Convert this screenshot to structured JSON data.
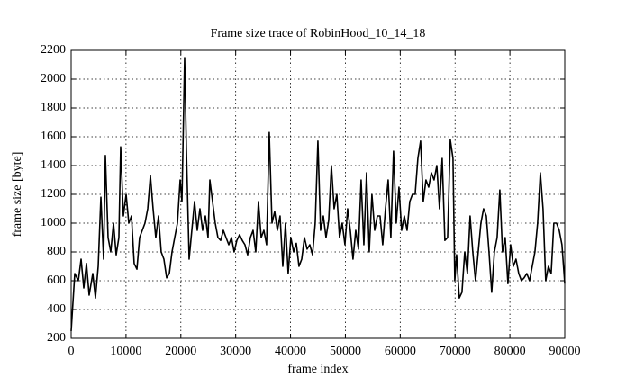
{
  "chart_data": {
    "type": "line",
    "title": "Frame size trace of RobinHood_10_14_18",
    "x_label": "frame index",
    "y_label": "frame size [byte]",
    "xlim": [
      0,
      90000
    ],
    "xticks": [
      0,
      10000,
      20000,
      30000,
      40000,
      50000,
      60000,
      70000,
      80000,
      90000
    ],
    "ylim": [
      200,
      2200
    ],
    "yticks": [
      200,
      400,
      600,
      800,
      1000,
      1200,
      1400,
      1600,
      1800,
      2000,
      2200
    ],
    "grid": true,
    "series": [
      {
        "name": "frame size",
        "color": "#000000",
        "x": [
          0,
          660,
          1310,
          1810,
          2300,
          2790,
          3280,
          3940,
          4430,
          4930,
          5420,
          5910,
          6240,
          6730,
          7220,
          7720,
          8210,
          8700,
          9030,
          9520,
          10020,
          10510,
          11000,
          11490,
          11990,
          12480,
          12970,
          13460,
          13960,
          14450,
          14940,
          15430,
          15930,
          16420,
          16910,
          17410,
          17900,
          18390,
          18880,
          19380,
          19870,
          20200,
          20690,
          21020,
          21510,
          22000,
          22500,
          22990,
          23480,
          23970,
          24470,
          24960,
          25290,
          25780,
          26270,
          26760,
          27260,
          27750,
          28240,
          28740,
          29230,
          29720,
          30210,
          30710,
          31200,
          31690,
          32180,
          32680,
          33170,
          33660,
          34150,
          34650,
          35140,
          35630,
          36120,
          36620,
          37110,
          37600,
          38090,
          38590,
          39080,
          39570,
          40060,
          40560,
          41050,
          41540,
          42040,
          42530,
          43020,
          43510,
          44010,
          44500,
          44990,
          45480,
          45980,
          46470,
          46960,
          47450,
          47950,
          48440,
          48930,
          49420,
          49920,
          50410,
          50900,
          51390,
          51890,
          52380,
          52870,
          53370,
          53860,
          54350,
          54840,
          55340,
          55830,
          56320,
          56810,
          57310,
          57800,
          58290,
          58780,
          59280,
          59770,
          60260,
          60750,
          61250,
          61740,
          62230,
          62720,
          63220,
          63710,
          64200,
          64690,
          65190,
          65680,
          66170,
          66670,
          67160,
          67650,
          68140,
          68640,
          69130,
          69620,
          69950,
          70280,
          70770,
          71260,
          71760,
          72250,
          72740,
          73230,
          73730,
          74220,
          74710,
          75200,
          75700,
          76190,
          76680,
          77170,
          77670,
          78160,
          78650,
          79140,
          79640,
          80130,
          80620,
          81110,
          81610,
          82100,
          82590,
          83080,
          83580,
          84070,
          84560,
          85050,
          85550,
          86040,
          86530,
          87020,
          87520,
          88010,
          88500,
          88990,
          89490,
          90000
        ],
        "values": [
          250,
          650,
          600,
          750,
          550,
          720,
          500,
          650,
          480,
          700,
          1180,
          750,
          1470,
          900,
          800,
          1000,
          780,
          900,
          1530,
          1050,
          1200,
          1000,
          1050,
          720,
          680,
          900,
          950,
          1000,
          1100,
          1330,
          1100,
          900,
          1050,
          800,
          750,
          620,
          650,
          800,
          900,
          1000,
          1300,
          1150,
          2150,
          1500,
          750,
          950,
          1150,
          950,
          1100,
          950,
          1050,
          900,
          1300,
          1150,
          1000,
          900,
          880,
          950,
          900,
          850,
          900,
          800,
          880,
          920,
          880,
          850,
          780,
          900,
          950,
          800,
          1150,
          900,
          950,
          850,
          1630,
          1000,
          1080,
          950,
          1050,
          700,
          1000,
          650,
          900,
          800,
          860,
          700,
          750,
          900,
          820,
          850,
          780,
          1000,
          1570,
          950,
          1050,
          900,
          1020,
          1400,
          1100,
          1200,
          900,
          1000,
          850,
          1100,
          950,
          750,
          950,
          820,
          1300,
          850,
          1350,
          800,
          1200,
          950,
          1050,
          1050,
          850,
          1100,
          1300,
          900,
          1500,
          1000,
          1250,
          950,
          1050,
          950,
          1150,
          1200,
          1200,
          1450,
          1570,
          1150,
          1300,
          1250,
          1350,
          1300,
          1400,
          1100,
          1450,
          880,
          900,
          1580,
          1450,
          600,
          780,
          480,
          520,
          800,
          650,
          1050,
          800,
          600,
          800,
          1000,
          1100,
          1050,
          800,
          520,
          800,
          900,
          1230,
          800,
          900,
          580,
          850,
          700,
          750,
          650,
          600,
          620,
          650,
          600,
          700,
          800,
          1000,
          1350,
          1100,
          600,
          700,
          650,
          1000,
          1000,
          950,
          850,
          580
        ]
      }
    ]
  }
}
